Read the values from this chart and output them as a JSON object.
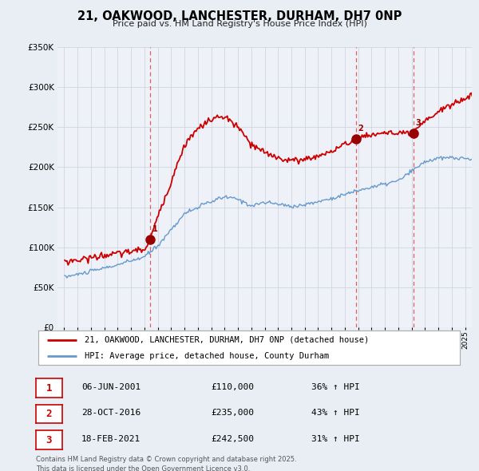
{
  "title": "21, OAKWOOD, LANCHESTER, DURHAM, DH7 0NP",
  "subtitle": "Price paid vs. HM Land Registry's House Price Index (HPI)",
  "legend_line1": "21, OAKWOOD, LANCHESTER, DURHAM, DH7 0NP (detached house)",
  "legend_line2": "HPI: Average price, detached house, County Durham",
  "sale_dates_num": [
    2001.43,
    2016.83,
    2021.12
  ],
  "sale_prices": [
    110000,
    235000,
    242500
  ],
  "sale_labels": [
    "1",
    "2",
    "3"
  ],
  "sale_annotations": [
    [
      "06-JUN-2001",
      "£110,000",
      "36% ↑ HPI"
    ],
    [
      "28-OCT-2016",
      "£235,000",
      "43% ↑ HPI"
    ],
    [
      "18-FEB-2021",
      "£242,500",
      "31% ↑ HPI"
    ]
  ],
  "footer": "Contains HM Land Registry data © Crown copyright and database right 2025.\nThis data is licensed under the Open Government Licence v3.0.",
  "red_color": "#cc0000",
  "blue_color": "#6699cc",
  "dashed_color": "#dd4444",
  "ylim": [
    0,
    350000
  ],
  "xlim": [
    1994.5,
    2025.5
  ],
  "bg_color": "#e8eef4",
  "plot_bg": "#eef2f8"
}
